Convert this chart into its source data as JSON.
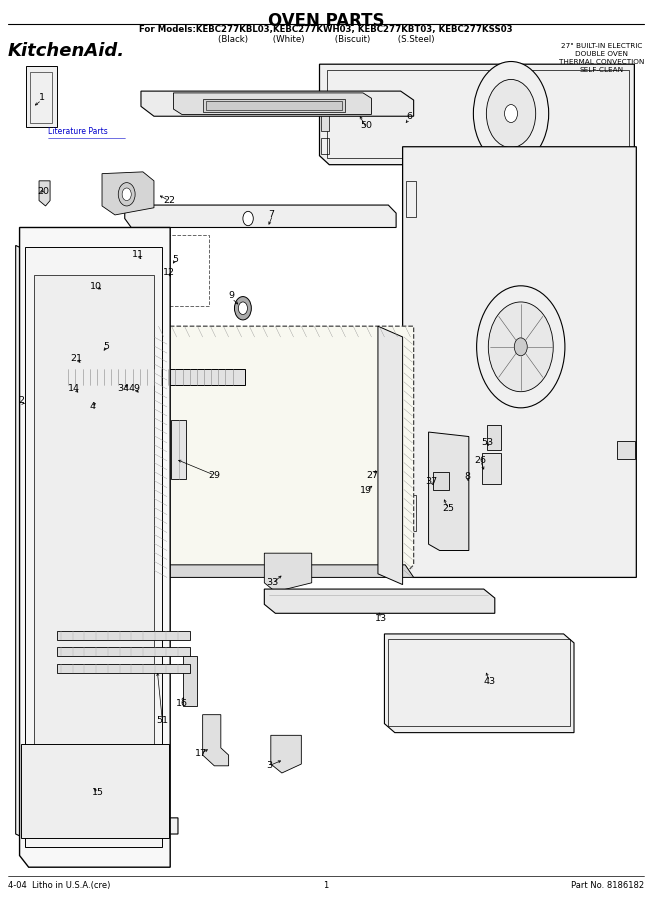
{
  "title": "OVEN PARTS",
  "subtitle_line1": "For Models:KEBC277KBL03,KEBC277KWH03, KEBC277KBT03, KEBC277KSS03",
  "subtitle_line2": "(Black)         (White)           (Biscuit)          (S.Steel)",
  "brand": "KitchenAid",
  "brand_dot": ".",
  "spec_text": "27\" BUILT-IN ELECTRIC\nDOUBLE OVEN\nTHERMAL CONVECTION\nSELF-CLEAN",
  "footer_left": "4-04  Litho in U.S.A.(cre)",
  "footer_center": "1",
  "footer_right": "Part No. 8186182",
  "lit_label": "Literature Parts",
  "bg_color": "#ffffff",
  "line_color": "#000000"
}
